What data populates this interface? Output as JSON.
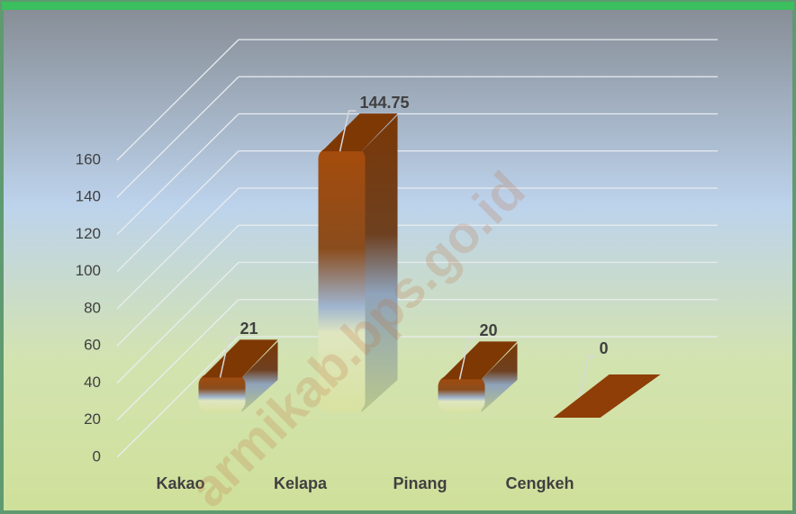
{
  "chart_data": {
    "type": "bar3d",
    "categories": [
      "Kakao",
      "Kelapa",
      "Pinang",
      "Cengkeh"
    ],
    "values": [
      21,
      144.75,
      20,
      0
    ],
    "color": "#a04a0a",
    "ylim": [
      0,
      160
    ],
    "yticks": [
      0,
      20,
      40,
      60,
      80,
      100,
      120,
      140,
      160
    ],
    "grid": true,
    "watermark": "armikab.bps.go.id"
  }
}
